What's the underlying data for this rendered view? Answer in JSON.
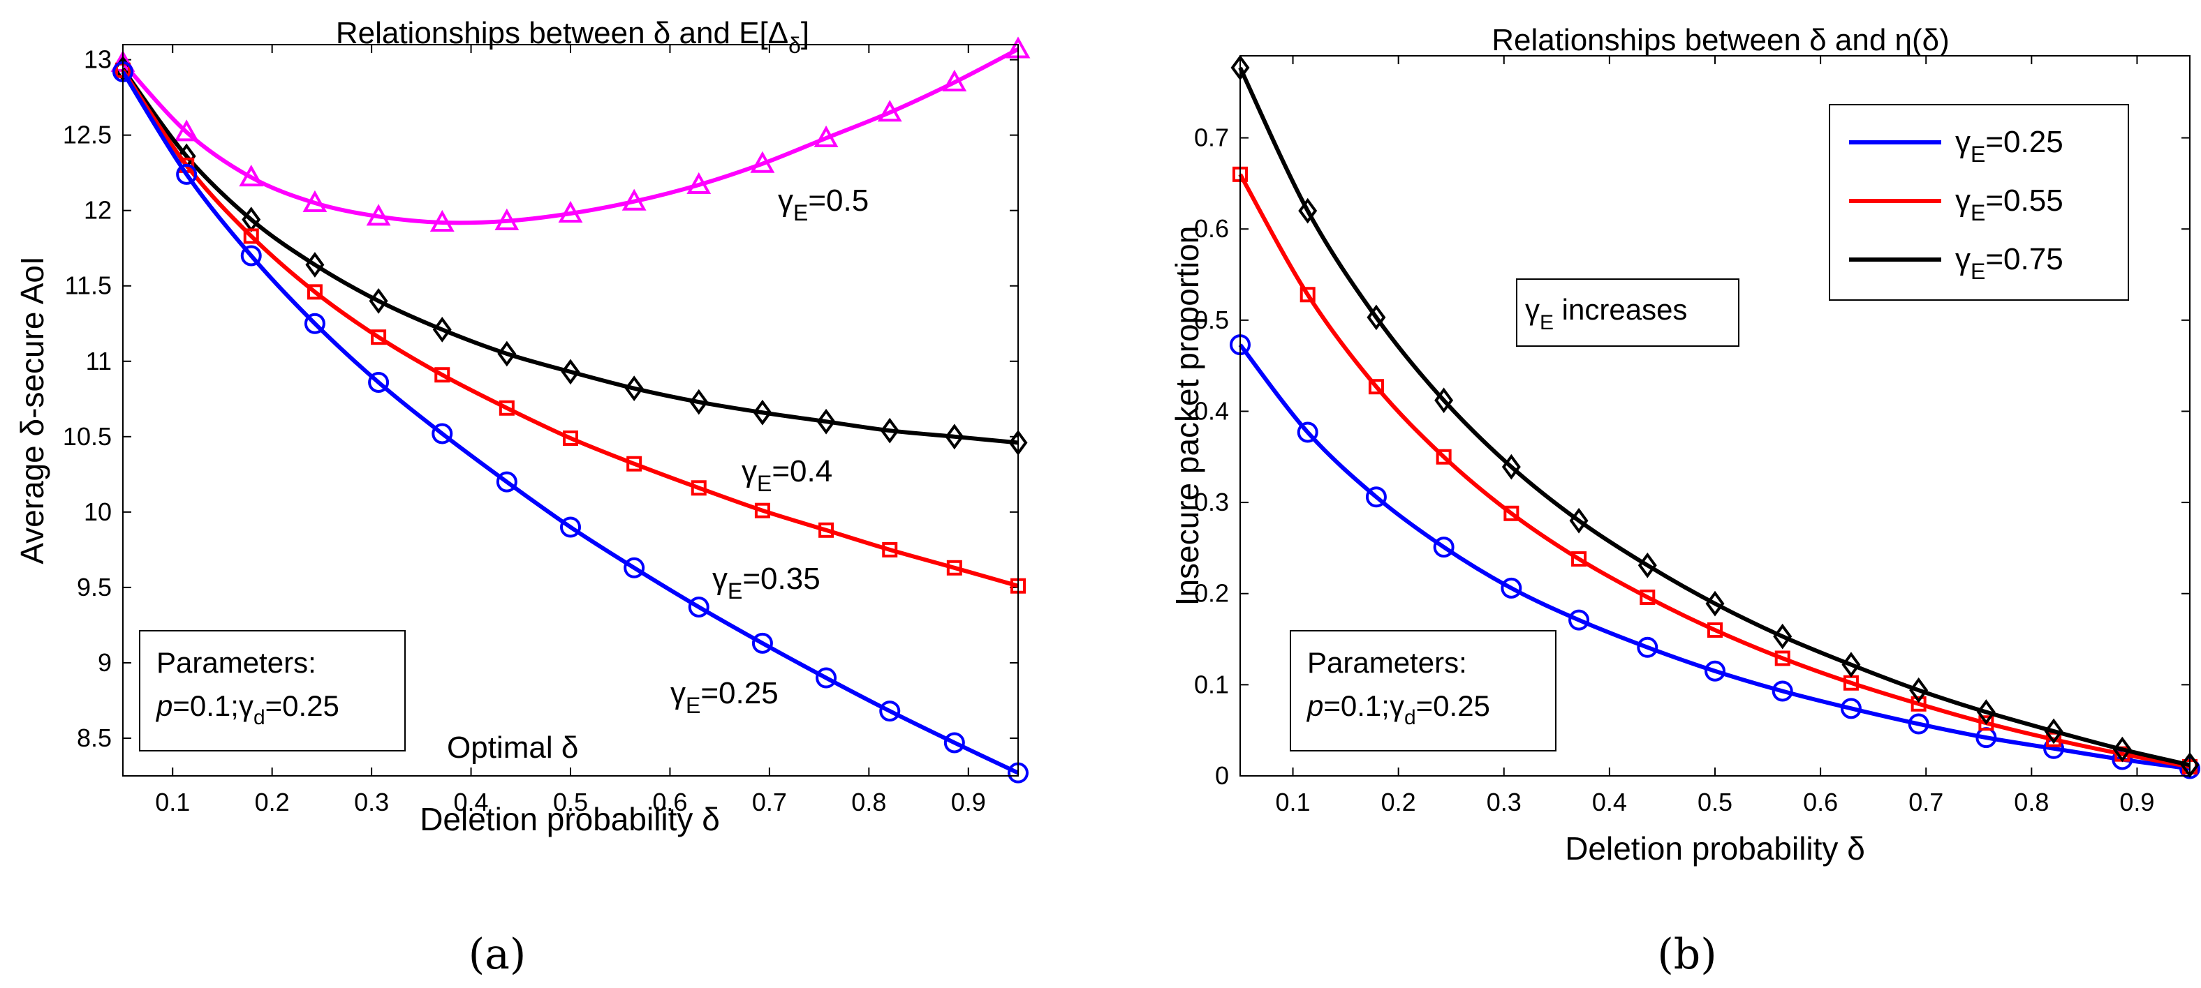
{
  "chart_data": [
    {
      "panel_id": "a",
      "type": "line",
      "title_text": "Relationships between δ and E[Δ",
      "title_sub": "δ",
      "title_end": "]",
      "xlabel": "Deletion probability δ",
      "ylabel": "Average δ-secure AoI",
      "xlim": [
        0.05,
        0.95
      ],
      "ylim": [
        8.25,
        13.1
      ],
      "xticks": [
        0.1,
        0.2,
        0.3,
        0.4,
        0.5,
        0.6,
        0.7,
        0.8,
        0.9
      ],
      "xtick_labels": [
        "0.1",
        "0.2",
        "0.3",
        "0.4",
        "0.5",
        "0.6",
        "0.7",
        "0.8",
        "0.9"
      ],
      "yticks": [
        8.5,
        9,
        9.5,
        10,
        10.5,
        11,
        11.5,
        12,
        12.5,
        13
      ],
      "ytick_labels": [
        "8.5",
        "9",
        "9.5",
        "10",
        "10.5",
        "11",
        "11.5",
        "12",
        "12.5",
        "13"
      ],
      "x": [
        0.05,
        0.114,
        0.179,
        0.243,
        0.307,
        0.371,
        0.436,
        0.5,
        0.564,
        0.629,
        0.693,
        0.757,
        0.821,
        0.886,
        0.95
      ],
      "series": [
        {
          "name": "γE=0.5",
          "color": "#ff00ff",
          "marker": "triangle",
          "values": [
            12.98,
            12.52,
            12.22,
            12.05,
            11.96,
            11.92,
            11.93,
            11.98,
            12.06,
            12.17,
            12.31,
            12.48,
            12.65,
            12.85,
            13.07
          ]
        },
        {
          "name": "γE=0.4",
          "color": "#000000",
          "marker": "diamond",
          "values": [
            12.94,
            12.36,
            11.94,
            11.64,
            11.4,
            11.21,
            11.05,
            10.93,
            10.82,
            10.73,
            10.66,
            10.6,
            10.54,
            10.5,
            10.46
          ]
        },
        {
          "name": "γE=0.35",
          "color": "#ff0000",
          "marker": "square",
          "values": [
            12.93,
            12.3,
            11.83,
            11.46,
            11.16,
            10.91,
            10.69,
            10.49,
            10.32,
            10.16,
            10.01,
            9.88,
            9.75,
            9.63,
            9.51
          ]
        },
        {
          "name": "γE=0.25",
          "color": "#0000ff",
          "marker": "circle",
          "values": [
            12.92,
            12.24,
            11.7,
            11.25,
            10.86,
            10.52,
            10.2,
            9.9,
            9.63,
            9.37,
            9.13,
            8.9,
            8.68,
            8.47,
            8.27
          ]
        }
      ],
      "annotations": [
        {
          "base": "γ",
          "sub": "E",
          "text": "=0.5",
          "x": 0.58,
          "y": 12.25
        },
        {
          "base": "γ",
          "sub": "E",
          "text": "=0.4",
          "x": 0.52,
          "y": 10.3
        },
        {
          "base": "γ",
          "sub": "E",
          "text": "=0.35",
          "x": 0.49,
          "y": 9.6
        },
        {
          "base": "γ",
          "sub": "E",
          "text": "=0.25",
          "x": 0.45,
          "y": 8.8
        }
      ],
      "optimal_label": "Optimal δ",
      "param_lines": [
        "Parameters:",
        "p=0.1;γd=0.25"
      ],
      "param_line2_parts": {
        "p": "p",
        "eq1": "=0.1;",
        "gamma": "γ",
        "sub": "d",
        "eq2": "=0.25"
      },
      "caption": "(a)"
    },
    {
      "panel_id": "b",
      "type": "line",
      "title_text": "Relationships between δ and η(δ)",
      "xlabel": "Deletion probability δ",
      "ylabel": "Insecure packet proportion",
      "xlim": [
        0.05,
        0.95
      ],
      "ylim": [
        0,
        0.79
      ],
      "xticks": [
        0.1,
        0.2,
        0.3,
        0.4,
        0.5,
        0.6,
        0.7,
        0.8,
        0.9
      ],
      "xtick_labels": [
        "0.1",
        "0.2",
        "0.3",
        "0.4",
        "0.5",
        "0.6",
        "0.7",
        "0.8",
        "0.9"
      ],
      "yticks": [
        0,
        0.1,
        0.2,
        0.3,
        0.4,
        0.5,
        0.6,
        0.7
      ],
      "ytick_labels": [
        "0",
        "0.1",
        "0.2",
        "0.3",
        "0.4",
        "0.5",
        "0.6",
        "0.7"
      ],
      "x": [
        0.05,
        0.114,
        0.179,
        0.243,
        0.307,
        0.371,
        0.436,
        0.5,
        0.564,
        0.629,
        0.693,
        0.757,
        0.821,
        0.886,
        0.95
      ],
      "series": [
        {
          "name": "γE=0.25",
          "color": "#0000ff",
          "marker": "circle",
          "values": [
            0.473,
            0.377,
            0.306,
            0.251,
            0.206,
            0.171,
            0.141,
            0.115,
            0.093,
            0.074,
            0.057,
            0.042,
            0.03,
            0.018,
            0.008
          ]
        },
        {
          "name": "γE=0.55",
          "color": "#ff0000",
          "marker": "square",
          "values": [
            0.66,
            0.528,
            0.427,
            0.35,
            0.288,
            0.238,
            0.196,
            0.16,
            0.129,
            0.102,
            0.079,
            0.058,
            0.04,
            0.024,
            0.01
          ]
        },
        {
          "name": "γE=0.75",
          "color": "#000000",
          "marker": "diamond",
          "values": [
            0.777,
            0.62,
            0.503,
            0.412,
            0.339,
            0.28,
            0.231,
            0.189,
            0.153,
            0.122,
            0.094,
            0.07,
            0.049,
            0.029,
            0.012
          ]
        }
      ],
      "legend": {
        "position": "top-right",
        "entries": [
          {
            "base": "γ",
            "sub": "E",
            "text": "=0.25",
            "color": "#0000ff"
          },
          {
            "base": "γ",
            "sub": "E",
            "text": "=0.55",
            "color": "#ff0000"
          },
          {
            "base": "γ",
            "sub": "E",
            "text": "=0.75",
            "color": "#000000"
          }
        ]
      },
      "increase_label": {
        "base": "γ",
        "sub": "E",
        "text": " increases"
      },
      "param_lines": [
        "Parameters:",
        "p=0.1;γd=0.25"
      ],
      "param_line2_parts": {
        "p": "p",
        "eq1": "=0.1;",
        "gamma": "γ",
        "sub": "d",
        "eq2": "=0.25"
      },
      "caption": "(b)"
    }
  ]
}
